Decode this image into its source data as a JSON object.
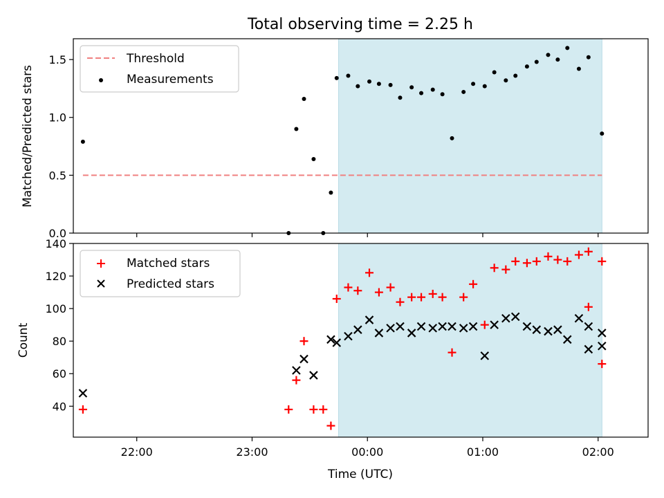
{
  "figure": {
    "title": "Total observing time = 2.25 h",
    "xlabel": "Time (UTC)",
    "x_ticks": [
      "22:00",
      "23:00",
      "00:00",
      "01:00",
      "02:00"
    ],
    "x_range": [
      "21:27",
      "02:26"
    ],
    "observing_window": {
      "start": "23:45",
      "end": "02:02",
      "color": "#d4ebf1"
    }
  },
  "chart_data": [
    {
      "type": "scatter",
      "title": "Total observing time = 2.25 h",
      "xlabel": "",
      "ylabel": "Matched/Predicted stars",
      "ylim": [
        0,
        1.68
      ],
      "y_ticks": [
        "0.0",
        "0.5",
        "1.0",
        "1.5"
      ],
      "legend_position": "upper left",
      "threshold": {
        "name": "Threshold",
        "value": 0.5,
        "x_start": "21:32",
        "x_end": "02:02",
        "color": "#f08080",
        "style": "dashed"
      },
      "series": [
        {
          "name": "Measurements",
          "color": "#000000",
          "marker": "dot",
          "x": [
            "21:32",
            "23:19",
            "23:23",
            "23:27",
            "23:32",
            "23:37",
            "23:41",
            "23:44",
            "23:50",
            "23:55",
            "00:01",
            "00:06",
            "00:12",
            "00:17",
            "00:23",
            "00:28",
            "00:34",
            "00:39",
            "00:44",
            "00:50",
            "00:55",
            "01:01",
            "01:06",
            "01:12",
            "01:17",
            "01:23",
            "01:28",
            "01:34",
            "01:39",
            "01:44",
            "01:50",
            "01:55",
            "02:02"
          ],
          "y": [
            0.79,
            0.0,
            0.9,
            1.16,
            0.64,
            0.0,
            0.35,
            1.34,
            1.36,
            1.27,
            1.31,
            1.29,
            1.28,
            1.17,
            1.26,
            1.21,
            1.24,
            1.2,
            0.82,
            1.22,
            1.29,
            1.27,
            1.39,
            1.32,
            1.36,
            1.44,
            1.48,
            1.54,
            1.5,
            1.6,
            1.42,
            1.52,
            0.86
          ]
        }
      ]
    },
    {
      "type": "scatter",
      "xlabel": "Time (UTC)",
      "ylabel": "Count",
      "ylim": [
        21,
        140
      ],
      "y_ticks": [
        "40",
        "60",
        "80",
        "100",
        "120",
        "140"
      ],
      "legend_position": "upper left",
      "series": [
        {
          "name": "Matched stars",
          "color": "#ff0000",
          "marker": "plus",
          "x": [
            "21:32",
            "23:19",
            "23:23",
            "23:27",
            "23:32",
            "23:37",
            "23:41",
            "23:44",
            "23:50",
            "23:55",
            "00:01",
            "00:06",
            "00:12",
            "00:17",
            "00:23",
            "00:28",
            "00:34",
            "00:39",
            "00:44",
            "00:50",
            "00:55",
            "01:01",
            "01:06",
            "01:12",
            "01:17",
            "01:23",
            "01:28",
            "01:34",
            "01:39",
            "01:44",
            "01:50",
            "01:55",
            "02:02"
          ],
          "y": [
            38,
            38,
            56,
            80,
            38,
            38,
            28,
            106,
            113,
            111,
            122,
            110,
            113,
            104,
            107,
            107,
            109,
            107,
            73,
            107,
            115,
            90,
            125,
            124,
            129,
            128,
            129,
            132,
            130,
            129,
            133,
            135,
            129
          ]
        },
        {
          "name": "Predicted stars",
          "color": "#000000",
          "marker": "x",
          "x": [
            "21:32",
            "23:23",
            "23:27",
            "23:32",
            "23:41",
            "23:44",
            "23:50",
            "23:55",
            "00:01",
            "00:06",
            "00:12",
            "00:17",
            "00:23",
            "00:28",
            "00:34",
            "00:39",
            "00:44",
            "00:50",
            "00:55",
            "01:01",
            "01:06",
            "01:12",
            "01:17",
            "01:23",
            "01:28",
            "01:34",
            "01:39",
            "01:44",
            "01:50",
            "01:55",
            "02:02"
          ],
          "y": [
            48,
            62,
            69,
            59,
            81,
            79,
            83,
            87,
            93,
            85,
            88,
            89,
            85,
            89,
            88,
            89,
            89,
            88,
            89,
            71,
            90,
            94,
            95,
            89,
            87,
            86,
            87,
            81,
            94,
            89,
            85
          ]
        }
      ],
      "extra_points": {
        "note_matched_tail": {
          "x": [
            "01:55",
            "02:02"
          ],
          "y": [
            101,
            66
          ]
        },
        "note_predicted_tail": {
          "x": [
            "01:55",
            "02:02"
          ],
          "y": [
            75,
            77
          ]
        }
      }
    }
  ]
}
